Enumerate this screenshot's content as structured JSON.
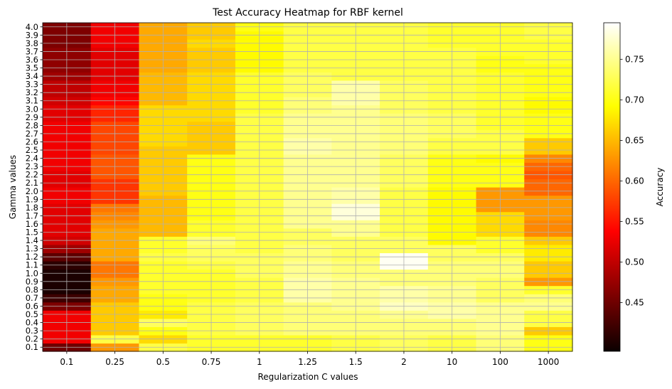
{
  "chart_data": {
    "type": "heatmap",
    "title": "Test Accuracy Heatmap for RBF kernel",
    "xlabel": "Regularization C values",
    "ylabel": "Gamma values",
    "colorbar_label": "Accuracy",
    "colormap": "hot",
    "vmin": 0.39,
    "vmax": 0.795,
    "colorbar_ticks": [
      "0.45",
      "0.50",
      "0.55",
      "0.60",
      "0.65",
      "0.70",
      "0.75"
    ],
    "grid": true,
    "x_categories": [
      "0.1",
      "0.25",
      "0.5",
      "0.75",
      "1",
      "1.25",
      "1.5",
      "2",
      "10",
      "100",
      "1000"
    ],
    "y_categories": [
      "0.1",
      "0.2",
      "0.3",
      "0.4",
      "0.5",
      "0.6",
      "0.7",
      "0.8",
      "0.9",
      "1.0",
      "1.1",
      "1.2",
      "1.3",
      "1.4",
      "1.5",
      "1.6",
      "1.7",
      "1.8",
      "1.9",
      "2.0",
      "2.1",
      "2.2",
      "2.3",
      "2.4",
      "2.5",
      "2.6",
      "2.7",
      "2.8",
      "2.9",
      "3.0",
      "3.1",
      "3.2",
      "3.3",
      "3.4",
      "3.5",
      "3.6",
      "3.7",
      "3.8",
      "3.9",
      "4.0"
    ],
    "columns": [
      {
        "C": "0.1",
        "values": [
          0.45,
          0.53,
          0.53,
          0.53,
          0.53,
          0.46,
          0.42,
          0.4,
          0.4,
          0.4,
          0.41,
          0.44,
          0.48,
          0.51,
          0.52,
          0.52,
          0.52,
          0.52,
          0.53,
          0.53,
          0.52,
          0.52,
          0.53,
          0.53,
          0.53,
          0.53,
          0.53,
          0.53,
          0.52,
          0.52,
          0.51,
          0.5,
          0.5,
          0.48,
          0.47,
          0.47,
          0.47,
          0.46,
          0.46,
          0.46
        ]
      },
      {
        "C": "0.25",
        "values": [
          0.63,
          0.72,
          0.66,
          0.66,
          0.66,
          0.66,
          0.64,
          0.64,
          0.63,
          0.61,
          0.61,
          0.64,
          0.64,
          0.64,
          0.64,
          0.63,
          0.62,
          0.61,
          0.57,
          0.57,
          0.57,
          0.59,
          0.59,
          0.59,
          0.58,
          0.58,
          0.58,
          0.58,
          0.56,
          0.56,
          0.54,
          0.53,
          0.53,
          0.52,
          0.52,
          0.52,
          0.52,
          0.53,
          0.53,
          0.53
        ]
      },
      {
        "C": "0.5",
        "values": [
          0.72,
          0.67,
          0.7,
          0.73,
          0.68,
          0.7,
          0.7,
          0.71,
          0.71,
          0.71,
          0.71,
          0.72,
          0.71,
          0.71,
          0.65,
          0.65,
          0.65,
          0.65,
          0.65,
          0.66,
          0.66,
          0.66,
          0.66,
          0.66,
          0.66,
          0.67,
          0.67,
          0.67,
          0.67,
          0.67,
          0.65,
          0.65,
          0.65,
          0.65,
          0.64,
          0.64,
          0.64,
          0.64,
          0.64,
          0.64
        ]
      },
      {
        "C": "0.75",
        "values": [
          0.71,
          0.71,
          0.72,
          0.72,
          0.72,
          0.72,
          0.71,
          0.71,
          0.71,
          0.71,
          0.72,
          0.73,
          0.73,
          0.74,
          0.71,
          0.71,
          0.7,
          0.7,
          0.7,
          0.7,
          0.7,
          0.7,
          0.7,
          0.7,
          0.66,
          0.66,
          0.66,
          0.66,
          0.67,
          0.67,
          0.67,
          0.67,
          0.67,
          0.67,
          0.66,
          0.66,
          0.66,
          0.67,
          0.66,
          0.66
        ]
      },
      {
        "C": "1",
        "values": [
          0.71,
          0.71,
          0.73,
          0.73,
          0.73,
          0.73,
          0.72,
          0.72,
          0.72,
          0.73,
          0.73,
          0.73,
          0.72,
          0.72,
          0.72,
          0.72,
          0.72,
          0.72,
          0.72,
          0.72,
          0.72,
          0.72,
          0.72,
          0.72,
          0.72,
          0.72,
          0.72,
          0.72,
          0.72,
          0.71,
          0.71,
          0.71,
          0.71,
          0.71,
          0.69,
          0.69,
          0.69,
          0.69,
          0.69,
          0.7
        ]
      },
      {
        "C": "1.25",
        "values": [
          0.71,
          0.71,
          0.74,
          0.74,
          0.74,
          0.74,
          0.76,
          0.76,
          0.76,
          0.75,
          0.75,
          0.74,
          0.74,
          0.73,
          0.73,
          0.75,
          0.75,
          0.75,
          0.75,
          0.75,
          0.75,
          0.75,
          0.75,
          0.75,
          0.76,
          0.76,
          0.75,
          0.75,
          0.75,
          0.74,
          0.74,
          0.73,
          0.73,
          0.73,
          0.72,
          0.72,
          0.72,
          0.72,
          0.72,
          0.72
        ]
      },
      {
        "C": "1.5",
        "values": [
          0.72,
          0.72,
          0.74,
          0.74,
          0.74,
          0.75,
          0.75,
          0.75,
          0.75,
          0.74,
          0.74,
          0.73,
          0.73,
          0.73,
          0.75,
          0.75,
          0.78,
          0.78,
          0.76,
          0.76,
          0.75,
          0.75,
          0.75,
          0.75,
          0.75,
          0.75,
          0.75,
          0.75,
          0.75,
          0.75,
          0.76,
          0.76,
          0.76,
          0.72,
          0.72,
          0.72,
          0.72,
          0.72,
          0.72,
          0.72
        ]
      },
      {
        "C": "2",
        "values": [
          0.73,
          0.73,
          0.74,
          0.74,
          0.75,
          0.77,
          0.76,
          0.76,
          0.74,
          0.74,
          0.79,
          0.79,
          0.73,
          0.73,
          0.72,
          0.72,
          0.72,
          0.72,
          0.72,
          0.72,
          0.73,
          0.73,
          0.73,
          0.73,
          0.74,
          0.74,
          0.74,
          0.74,
          0.74,
          0.73,
          0.73,
          0.73,
          0.73,
          0.72,
          0.72,
          0.72,
          0.72,
          0.72,
          0.72,
          0.72
        ]
      },
      {
        "C": "10",
        "values": [
          0.72,
          0.72,
          0.74,
          0.74,
          0.76,
          0.76,
          0.75,
          0.75,
          0.74,
          0.74,
          0.74,
          0.73,
          0.73,
          0.69,
          0.69,
          0.69,
          0.69,
          0.69,
          0.69,
          0.69,
          0.7,
          0.7,
          0.7,
          0.7,
          0.72,
          0.72,
          0.73,
          0.73,
          0.73,
          0.72,
          0.72,
          0.72,
          0.72,
          0.72,
          0.72,
          0.72,
          0.72,
          0.71,
          0.71,
          0.71
        ]
      },
      {
        "C": "100",
        "values": [
          0.74,
          0.74,
          0.75,
          0.75,
          0.75,
          0.75,
          0.73,
          0.73,
          0.73,
          0.74,
          0.74,
          0.73,
          0.71,
          0.71,
          0.67,
          0.67,
          0.67,
          0.63,
          0.63,
          0.63,
          0.7,
          0.7,
          0.7,
          0.69,
          0.72,
          0.72,
          0.72,
          0.71,
          0.71,
          0.71,
          0.71,
          0.71,
          0.71,
          0.71,
          0.7,
          0.7,
          0.71,
          0.71,
          0.71,
          0.71
        ]
      },
      {
        "C": "1000",
        "values": [
          0.7,
          0.7,
          0.66,
          0.72,
          0.72,
          0.75,
          0.74,
          0.71,
          0.63,
          0.66,
          0.66,
          0.68,
          0.68,
          0.66,
          0.62,
          0.62,
          0.63,
          0.63,
          0.63,
          0.6,
          0.6,
          0.59,
          0.6,
          0.62,
          0.66,
          0.66,
          0.7,
          0.7,
          0.7,
          0.69,
          0.69,
          0.7,
          0.7,
          0.7,
          0.7,
          0.71,
          0.71,
          0.71,
          0.72,
          0.72
        ]
      }
    ]
  }
}
